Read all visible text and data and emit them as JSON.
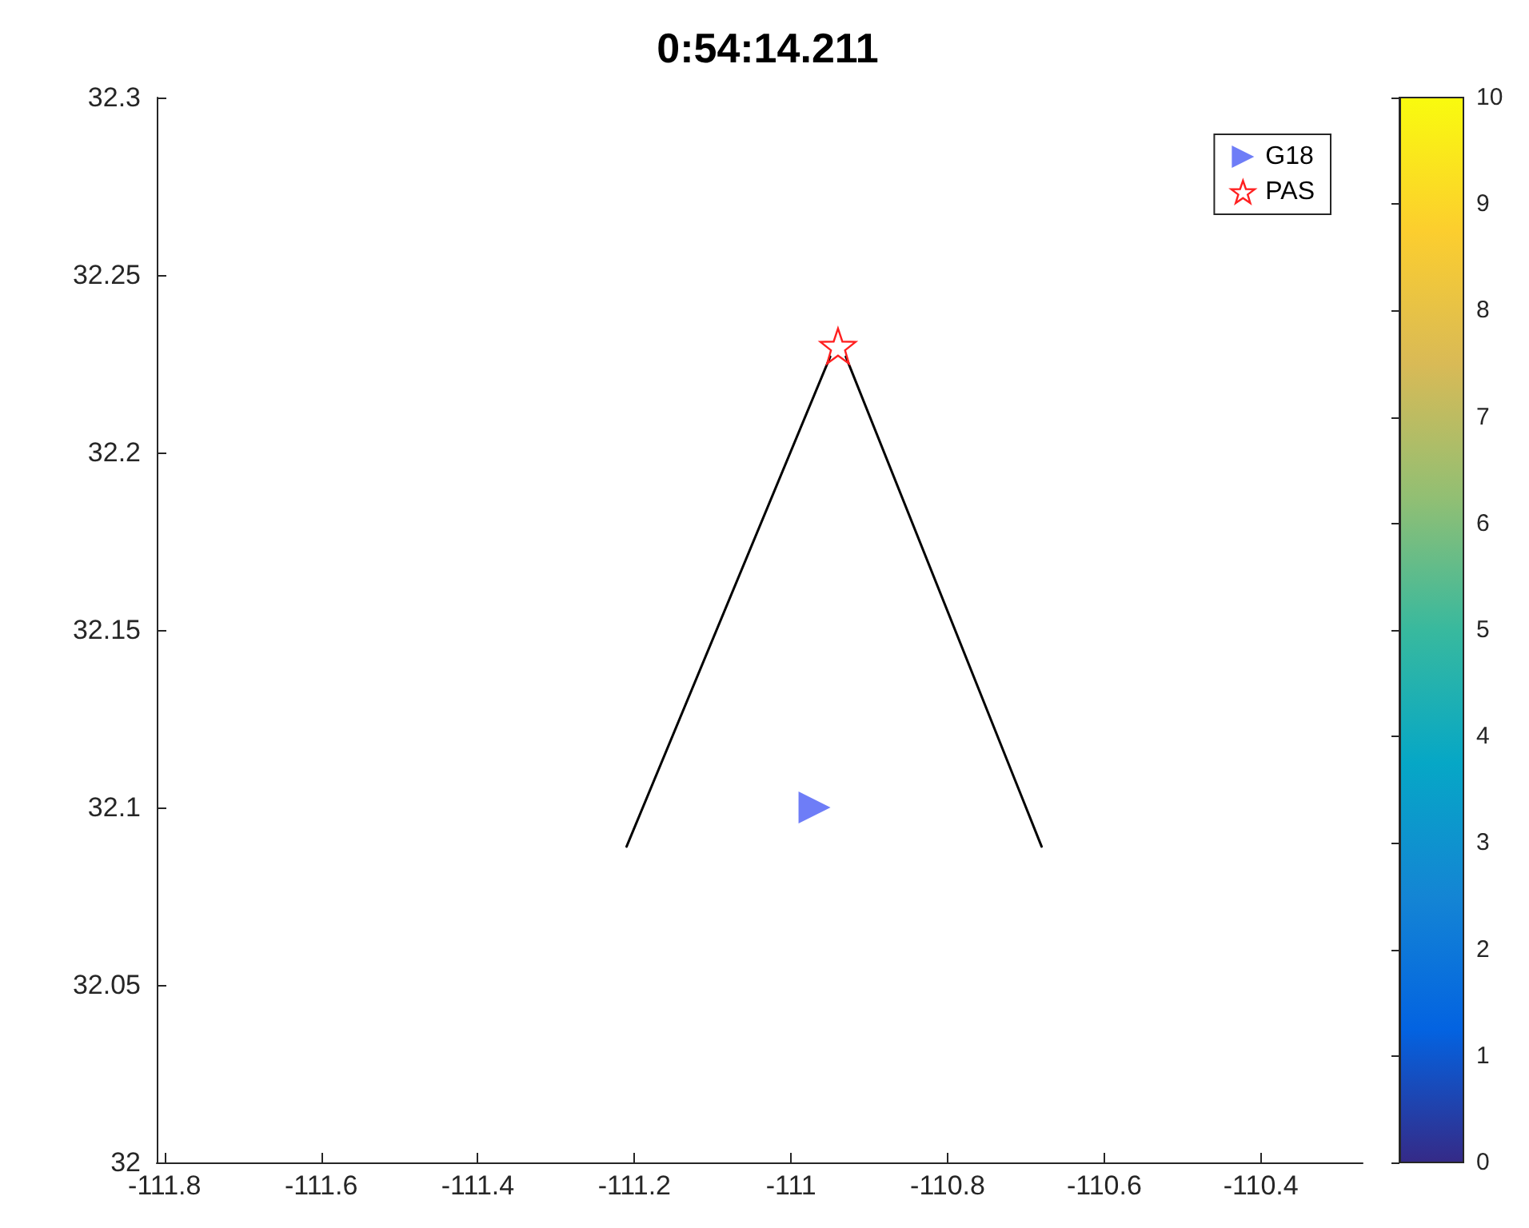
{
  "chart_data": {
    "type": "scatter",
    "title": "0:54:14.211",
    "xlim": [
      -111.81,
      -110.27
    ],
    "xticks": [
      -111.8,
      -111.6,
      -111.4,
      -111.2,
      -111,
      -110.8,
      -110.6,
      -110.4
    ],
    "ylim": [
      32,
      32.3
    ],
    "yticks": [
      32,
      32.05,
      32.1,
      32.15,
      32.2,
      32.25,
      32.3
    ],
    "clim": [
      0,
      10
    ],
    "cticks": [
      0,
      1,
      2,
      3,
      4,
      5,
      6,
      7,
      8,
      9,
      10
    ],
    "grid": false,
    "legend": "top right",
    "series": [
      {
        "name": "G18",
        "marker": "triangle",
        "color": "#4a5cf5",
        "x": [
          -110.97
        ],
        "values": [
          32.1
        ]
      },
      {
        "name": "PAS",
        "type": "line",
        "marker": "star",
        "color": "#ff2020",
        "x": [
          -110.94
        ],
        "values": [
          32.23
        ]
      },
      {
        "type": "line",
        "marker": "none",
        "color": "#000000",
        "x": [
          -111.21,
          -110.95
        ],
        "values": [
          32.089,
          32.227
        ]
      },
      {
        "type": "line",
        "marker": "none",
        "color": "#000000",
        "x": [
          -110.93,
          -110.68
        ],
        "values": [
          32.227,
          32.089
        ]
      }
    ]
  }
}
